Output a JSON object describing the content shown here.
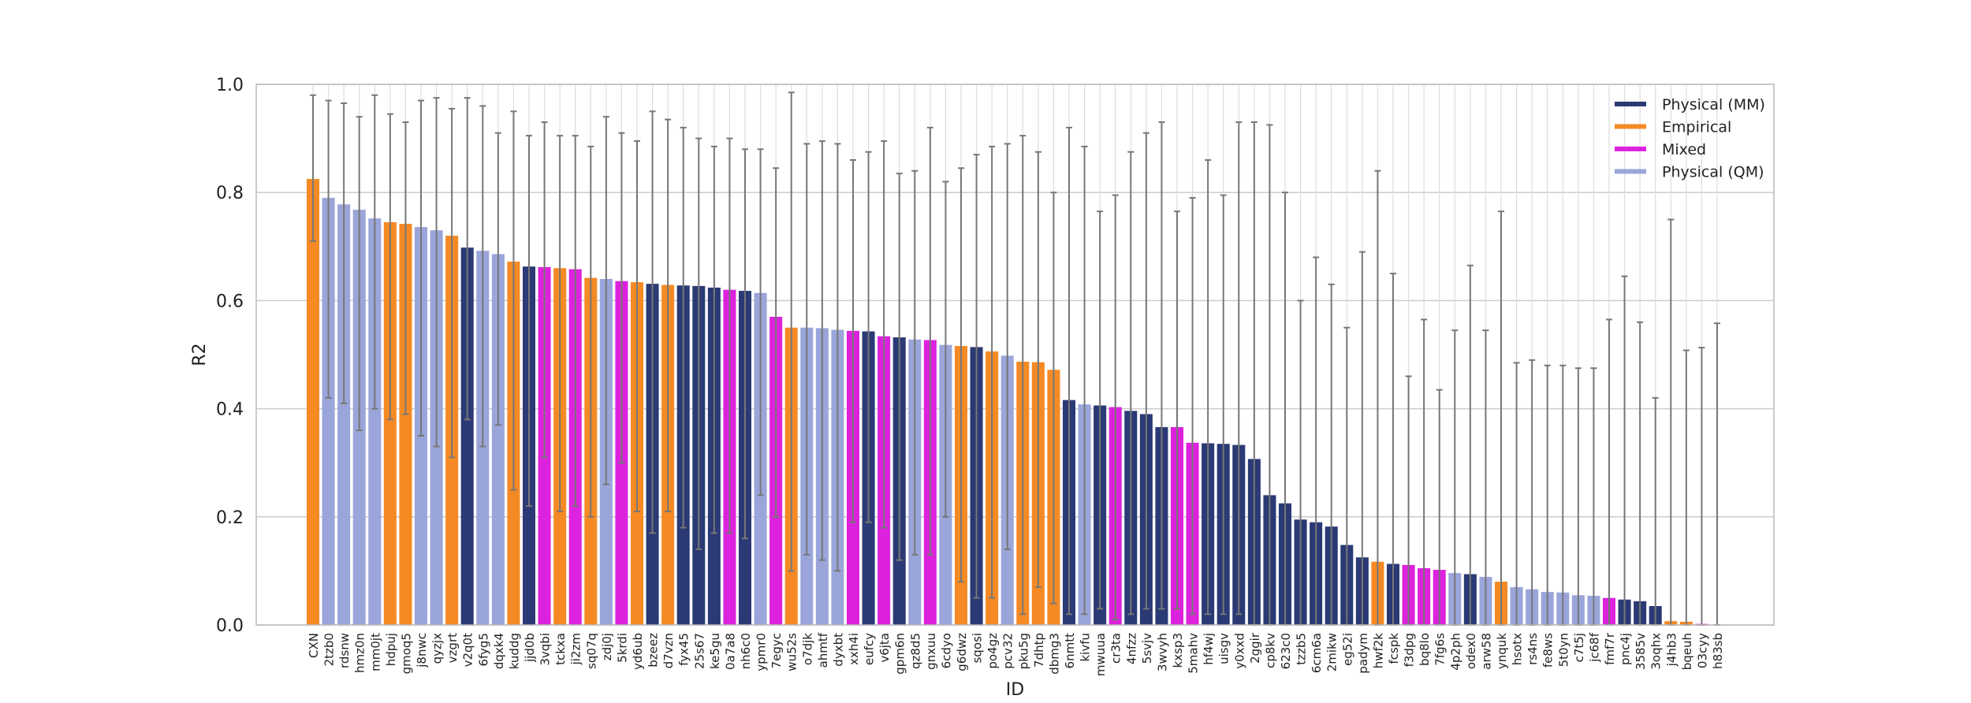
{
  "chart_data": {
    "type": "bar",
    "title": "",
    "xlabel": "ID",
    "ylabel": "R2",
    "ylim": [
      0.0,
      1.0
    ],
    "yticks": [
      0.0,
      0.2,
      0.4,
      0.6,
      0.8,
      1.0
    ],
    "grid": true,
    "legend_position": "top-right",
    "colors": {
      "Physical (MM)": "#2b3a75",
      "Empirical": "#f58a25",
      "Mixed": "#dd22dd",
      "Physical (QM)": "#9aa5da"
    },
    "error_bar_color": "#777777",
    "legend": [
      {
        "label": "Physical (MM)",
        "color": "#2b3a75"
      },
      {
        "label": "Empirical",
        "color": "#f58a25"
      },
      {
        "label": "Mixed",
        "color": "#dd22dd"
      },
      {
        "label": "Physical (QM)",
        "color": "#9aa5da"
      }
    ],
    "bars": [
      {
        "id": "CXN",
        "value": 0.825,
        "lo": 0.71,
        "hi": 0.98,
        "cat": "Empirical"
      },
      {
        "id": "2tzb0",
        "value": 0.79,
        "lo": 0.42,
        "hi": 0.97,
        "cat": "Physical (QM)"
      },
      {
        "id": "rdsnw",
        "value": 0.778,
        "lo": 0.41,
        "hi": 0.965,
        "cat": "Physical (QM)"
      },
      {
        "id": "hmz0n",
        "value": 0.768,
        "lo": 0.36,
        "hi": 0.94,
        "cat": "Physical (QM)"
      },
      {
        "id": "mm0jt",
        "value": 0.752,
        "lo": 0.4,
        "hi": 0.98,
        "cat": "Physical (QM)"
      },
      {
        "id": "hdpuj",
        "value": 0.745,
        "lo": 0.38,
        "hi": 0.945,
        "cat": "Empirical"
      },
      {
        "id": "gmoq5",
        "value": 0.742,
        "lo": 0.39,
        "hi": 0.93,
        "cat": "Empirical"
      },
      {
        "id": "j8nwc",
        "value": 0.736,
        "lo": 0.35,
        "hi": 0.97,
        "cat": "Physical (QM)"
      },
      {
        "id": "qyzjx",
        "value": 0.73,
        "lo": 0.33,
        "hi": 0.975,
        "cat": "Physical (QM)"
      },
      {
        "id": "vzgrt",
        "value": 0.72,
        "lo": 0.31,
        "hi": 0.955,
        "cat": "Empirical"
      },
      {
        "id": "v2q0t",
        "value": 0.698,
        "lo": 0.38,
        "hi": 0.975,
        "cat": "Physical (MM)"
      },
      {
        "id": "6fyg5",
        "value": 0.692,
        "lo": 0.33,
        "hi": 0.96,
        "cat": "Physical (QM)"
      },
      {
        "id": "dqxk4",
        "value": 0.686,
        "lo": 0.37,
        "hi": 0.91,
        "cat": "Physical (QM)"
      },
      {
        "id": "kuddg",
        "value": 0.672,
        "lo": 0.25,
        "hi": 0.95,
        "cat": "Empirical"
      },
      {
        "id": "jjd0b",
        "value": 0.663,
        "lo": 0.22,
        "hi": 0.905,
        "cat": "Physical (MM)"
      },
      {
        "id": "3vqbi",
        "value": 0.662,
        "lo": 0.31,
        "hi": 0.93,
        "cat": "Mixed"
      },
      {
        "id": "tckxa",
        "value": 0.66,
        "lo": 0.21,
        "hi": 0.905,
        "cat": "Empirical"
      },
      {
        "id": "ji2zm",
        "value": 0.658,
        "lo": 0.22,
        "hi": 0.905,
        "cat": "Mixed"
      },
      {
        "id": "sq07q",
        "value": 0.642,
        "lo": 0.2,
        "hi": 0.885,
        "cat": "Empirical"
      },
      {
        "id": "zdj0j",
        "value": 0.64,
        "lo": 0.26,
        "hi": 0.94,
        "cat": "Physical (QM)"
      },
      {
        "id": "5krdi",
        "value": 0.636,
        "lo": 0.3,
        "hi": 0.91,
        "cat": "Mixed"
      },
      {
        "id": "yd6ub",
        "value": 0.634,
        "lo": 0.21,
        "hi": 0.895,
        "cat": "Empirical"
      },
      {
        "id": "bzeez",
        "value": 0.631,
        "lo": 0.17,
        "hi": 0.95,
        "cat": "Physical (MM)"
      },
      {
        "id": "d7vzn",
        "value": 0.629,
        "lo": 0.21,
        "hi": 0.935,
        "cat": "Empirical"
      },
      {
        "id": "fyx45",
        "value": 0.628,
        "lo": 0.18,
        "hi": 0.92,
        "cat": "Physical (MM)"
      },
      {
        "id": "25s67",
        "value": 0.627,
        "lo": 0.14,
        "hi": 0.9,
        "cat": "Physical (MM)"
      },
      {
        "id": "ke5gu",
        "value": 0.624,
        "lo": 0.17,
        "hi": 0.885,
        "cat": "Physical (MM)"
      },
      {
        "id": "0a7a8",
        "value": 0.62,
        "lo": 0.17,
        "hi": 0.9,
        "cat": "Mixed"
      },
      {
        "id": "nh6c0",
        "value": 0.618,
        "lo": 0.16,
        "hi": 0.88,
        "cat": "Physical (MM)"
      },
      {
        "id": "ypmr0",
        "value": 0.614,
        "lo": 0.24,
        "hi": 0.88,
        "cat": "Physical (QM)"
      },
      {
        "id": "7egyc",
        "value": 0.57,
        "lo": 0.2,
        "hi": 0.845,
        "cat": "Mixed"
      },
      {
        "id": "wu52s",
        "value": 0.55,
        "lo": 0.1,
        "hi": 0.985,
        "cat": "Empirical"
      },
      {
        "id": "o7djk",
        "value": 0.55,
        "lo": 0.13,
        "hi": 0.89,
        "cat": "Physical (QM)"
      },
      {
        "id": "ahmtf",
        "value": 0.549,
        "lo": 0.12,
        "hi": 0.895,
        "cat": "Physical (QM)"
      },
      {
        "id": "dyxbt",
        "value": 0.546,
        "lo": 0.1,
        "hi": 0.89,
        "cat": "Physical (QM)"
      },
      {
        "id": "xxh4i",
        "value": 0.544,
        "lo": 0.19,
        "hi": 0.86,
        "cat": "Mixed"
      },
      {
        "id": "eufcy",
        "value": 0.543,
        "lo": 0.19,
        "hi": 0.875,
        "cat": "Physical (MM)"
      },
      {
        "id": "v6jta",
        "value": 0.534,
        "lo": 0.18,
        "hi": 0.895,
        "cat": "Mixed"
      },
      {
        "id": "gpm6n",
        "value": 0.532,
        "lo": 0.12,
        "hi": 0.835,
        "cat": "Physical (MM)"
      },
      {
        "id": "qz8d5",
        "value": 0.528,
        "lo": 0.13,
        "hi": 0.84,
        "cat": "Physical (QM)"
      },
      {
        "id": "gnxuu",
        "value": 0.527,
        "lo": 0.13,
        "hi": 0.92,
        "cat": "Mixed"
      },
      {
        "id": "6cdyo",
        "value": 0.518,
        "lo": 0.2,
        "hi": 0.82,
        "cat": "Physical (QM)"
      },
      {
        "id": "g6dwz",
        "value": 0.516,
        "lo": 0.08,
        "hi": 0.845,
        "cat": "Empirical"
      },
      {
        "id": "sqosi",
        "value": 0.514,
        "lo": 0.05,
        "hi": 0.87,
        "cat": "Physical (MM)"
      },
      {
        "id": "po4gz",
        "value": 0.506,
        "lo": 0.05,
        "hi": 0.885,
        "cat": "Empirical"
      },
      {
        "id": "pcv32",
        "value": 0.498,
        "lo": 0.14,
        "hi": 0.89,
        "cat": "Physical (QM)"
      },
      {
        "id": "pku5g",
        "value": 0.487,
        "lo": 0.02,
        "hi": 0.905,
        "cat": "Empirical"
      },
      {
        "id": "7dhtp",
        "value": 0.486,
        "lo": 0.07,
        "hi": 0.875,
        "cat": "Empirical"
      },
      {
        "id": "dbmg3",
        "value": 0.472,
        "lo": 0.04,
        "hi": 0.8,
        "cat": "Empirical"
      },
      {
        "id": "6nmtt",
        "value": 0.416,
        "lo": 0.02,
        "hi": 0.92,
        "cat": "Physical (MM)"
      },
      {
        "id": "kivfu",
        "value": 0.408,
        "lo": 0.02,
        "hi": 0.885,
        "cat": "Physical (QM)"
      },
      {
        "id": "mwuua",
        "value": 0.406,
        "lo": 0.03,
        "hi": 0.765,
        "cat": "Physical (MM)"
      },
      {
        "id": "cr3ta",
        "value": 0.403,
        "lo": 0.01,
        "hi": 0.795,
        "cat": "Mixed"
      },
      {
        "id": "4nfzz",
        "value": 0.396,
        "lo": 0.02,
        "hi": 0.875,
        "cat": "Physical (MM)"
      },
      {
        "id": "5svjv",
        "value": 0.39,
        "lo": 0.03,
        "hi": 0.91,
        "cat": "Physical (MM)"
      },
      {
        "id": "3wvyh",
        "value": 0.366,
        "lo": 0.03,
        "hi": 0.93,
        "cat": "Physical (MM)"
      },
      {
        "id": "kxsp3",
        "value": 0.366,
        "lo": 0.03,
        "hi": 0.765,
        "cat": "Mixed"
      },
      {
        "id": "5mahv",
        "value": 0.337,
        "lo": 0.02,
        "hi": 0.79,
        "cat": "Mixed"
      },
      {
        "id": "hf4wj",
        "value": 0.336,
        "lo": 0.02,
        "hi": 0.86,
        "cat": "Physical (MM)"
      },
      {
        "id": "uisgv",
        "value": 0.335,
        "lo": 0.02,
        "hi": 0.795,
        "cat": "Physical (MM)"
      },
      {
        "id": "y0xxd",
        "value": 0.333,
        "lo": 0.02,
        "hi": 0.93,
        "cat": "Physical (MM)"
      },
      {
        "id": "2ggir",
        "value": 0.307,
        "lo": 0.0,
        "hi": 0.93,
        "cat": "Physical (MM)"
      },
      {
        "id": "cp8kv",
        "value": 0.24,
        "lo": 0.0,
        "hi": 0.925,
        "cat": "Physical (MM)"
      },
      {
        "id": "623c0",
        "value": 0.225,
        "lo": 0.0,
        "hi": 0.8,
        "cat": "Physical (MM)"
      },
      {
        "id": "tzzb5",
        "value": 0.195,
        "lo": 0.0,
        "hi": 0.6,
        "cat": "Physical (MM)"
      },
      {
        "id": "6cm6a",
        "value": 0.19,
        "lo": 0.0,
        "hi": 0.68,
        "cat": "Physical (MM)"
      },
      {
        "id": "2mikw",
        "value": 0.182,
        "lo": 0.0,
        "hi": 0.63,
        "cat": "Physical (MM)"
      },
      {
        "id": "eg52i",
        "value": 0.148,
        "lo": 0.0,
        "hi": 0.55,
        "cat": "Physical (MM)"
      },
      {
        "id": "padym",
        "value": 0.125,
        "lo": 0.0,
        "hi": 0.69,
        "cat": "Physical (MM)"
      },
      {
        "id": "hwf2k",
        "value": 0.117,
        "lo": 0.0,
        "hi": 0.84,
        "cat": "Empirical"
      },
      {
        "id": "fcspk",
        "value": 0.113,
        "lo": 0.0,
        "hi": 0.65,
        "cat": "Physical (MM)"
      },
      {
        "id": "f3dpg",
        "value": 0.111,
        "lo": 0.0,
        "hi": 0.46,
        "cat": "Mixed"
      },
      {
        "id": "bq8lo",
        "value": 0.105,
        "lo": 0.0,
        "hi": 0.565,
        "cat": "Mixed"
      },
      {
        "id": "7fg6s",
        "value": 0.102,
        "lo": 0.0,
        "hi": 0.435,
        "cat": "Mixed"
      },
      {
        "id": "4p2ph",
        "value": 0.096,
        "lo": 0.0,
        "hi": 0.545,
        "cat": "Physical (QM)"
      },
      {
        "id": "odex0",
        "value": 0.094,
        "lo": 0.0,
        "hi": 0.665,
        "cat": "Physical (MM)"
      },
      {
        "id": "arw58",
        "value": 0.089,
        "lo": 0.0,
        "hi": 0.545,
        "cat": "Physical (QM)"
      },
      {
        "id": "ynquk",
        "value": 0.08,
        "lo": 0.0,
        "hi": 0.765,
        "cat": "Empirical"
      },
      {
        "id": "hsotx",
        "value": 0.07,
        "lo": 0.0,
        "hi": 0.485,
        "cat": "Physical (QM)"
      },
      {
        "id": "rs4ns",
        "value": 0.066,
        "lo": 0.0,
        "hi": 0.49,
        "cat": "Physical (QM)"
      },
      {
        "id": "fe8ws",
        "value": 0.061,
        "lo": 0.0,
        "hi": 0.48,
        "cat": "Physical (QM)"
      },
      {
        "id": "5t0yn",
        "value": 0.06,
        "lo": 0.0,
        "hi": 0.48,
        "cat": "Physical (QM)"
      },
      {
        "id": "c7t5j",
        "value": 0.055,
        "lo": 0.0,
        "hi": 0.475,
        "cat": "Physical (QM)"
      },
      {
        "id": "jc68f",
        "value": 0.054,
        "lo": 0.0,
        "hi": 0.475,
        "cat": "Physical (QM)"
      },
      {
        "id": "fmf7r",
        "value": 0.05,
        "lo": 0.0,
        "hi": 0.565,
        "cat": "Mixed"
      },
      {
        "id": "pnc4j",
        "value": 0.047,
        "lo": 0.0,
        "hi": 0.645,
        "cat": "Physical (MM)"
      },
      {
        "id": "3585v",
        "value": 0.044,
        "lo": 0.0,
        "hi": 0.56,
        "cat": "Physical (MM)"
      },
      {
        "id": "3oqhx",
        "value": 0.035,
        "lo": 0.0,
        "hi": 0.42,
        "cat": "Physical (MM)"
      },
      {
        "id": "j4hb3",
        "value": 0.007,
        "lo": 0.0,
        "hi": 0.75,
        "cat": "Empirical"
      },
      {
        "id": "bqeuh",
        "value": 0.006,
        "lo": 0.0,
        "hi": 0.508,
        "cat": "Empirical"
      },
      {
        "id": "03cyy",
        "value": 0.002,
        "lo": 0.0,
        "hi": 0.513,
        "cat": "Mixed"
      },
      {
        "id": "h83sb",
        "value": 0.0,
        "lo": 0.0,
        "hi": 0.558,
        "cat": "Physical (MM)"
      }
    ]
  }
}
